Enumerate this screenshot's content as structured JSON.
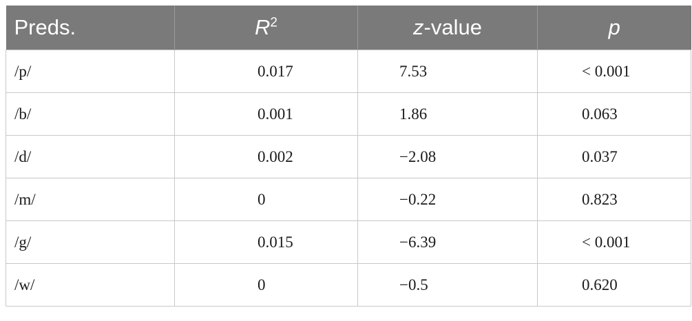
{
  "table": {
    "headers": {
      "preds": "Preds.",
      "r2_base": "R",
      "r2_sup": "2",
      "z_italic": "z",
      "z_rest": "-value",
      "p": "p"
    },
    "rows": [
      {
        "pred": "/p/",
        "r2": "0.017",
        "z": "7.53",
        "p": "< 0.001"
      },
      {
        "pred": "/b/",
        "r2": "0.001",
        "z": "1.86",
        "p": "0.063"
      },
      {
        "pred": "/d/",
        "r2": "0.002",
        "z": "−2.08",
        "p": "0.037"
      },
      {
        "pred": "/m/",
        "r2": "0",
        "z": "−0.22",
        "p": "0.823"
      },
      {
        "pred": "/g/",
        "r2": "0.015",
        "z": "−6.39",
        "p": "< 0.001"
      },
      {
        "pred": "/w/",
        "r2": "0",
        "z": "−0.5",
        "p": "0.620"
      }
    ]
  }
}
